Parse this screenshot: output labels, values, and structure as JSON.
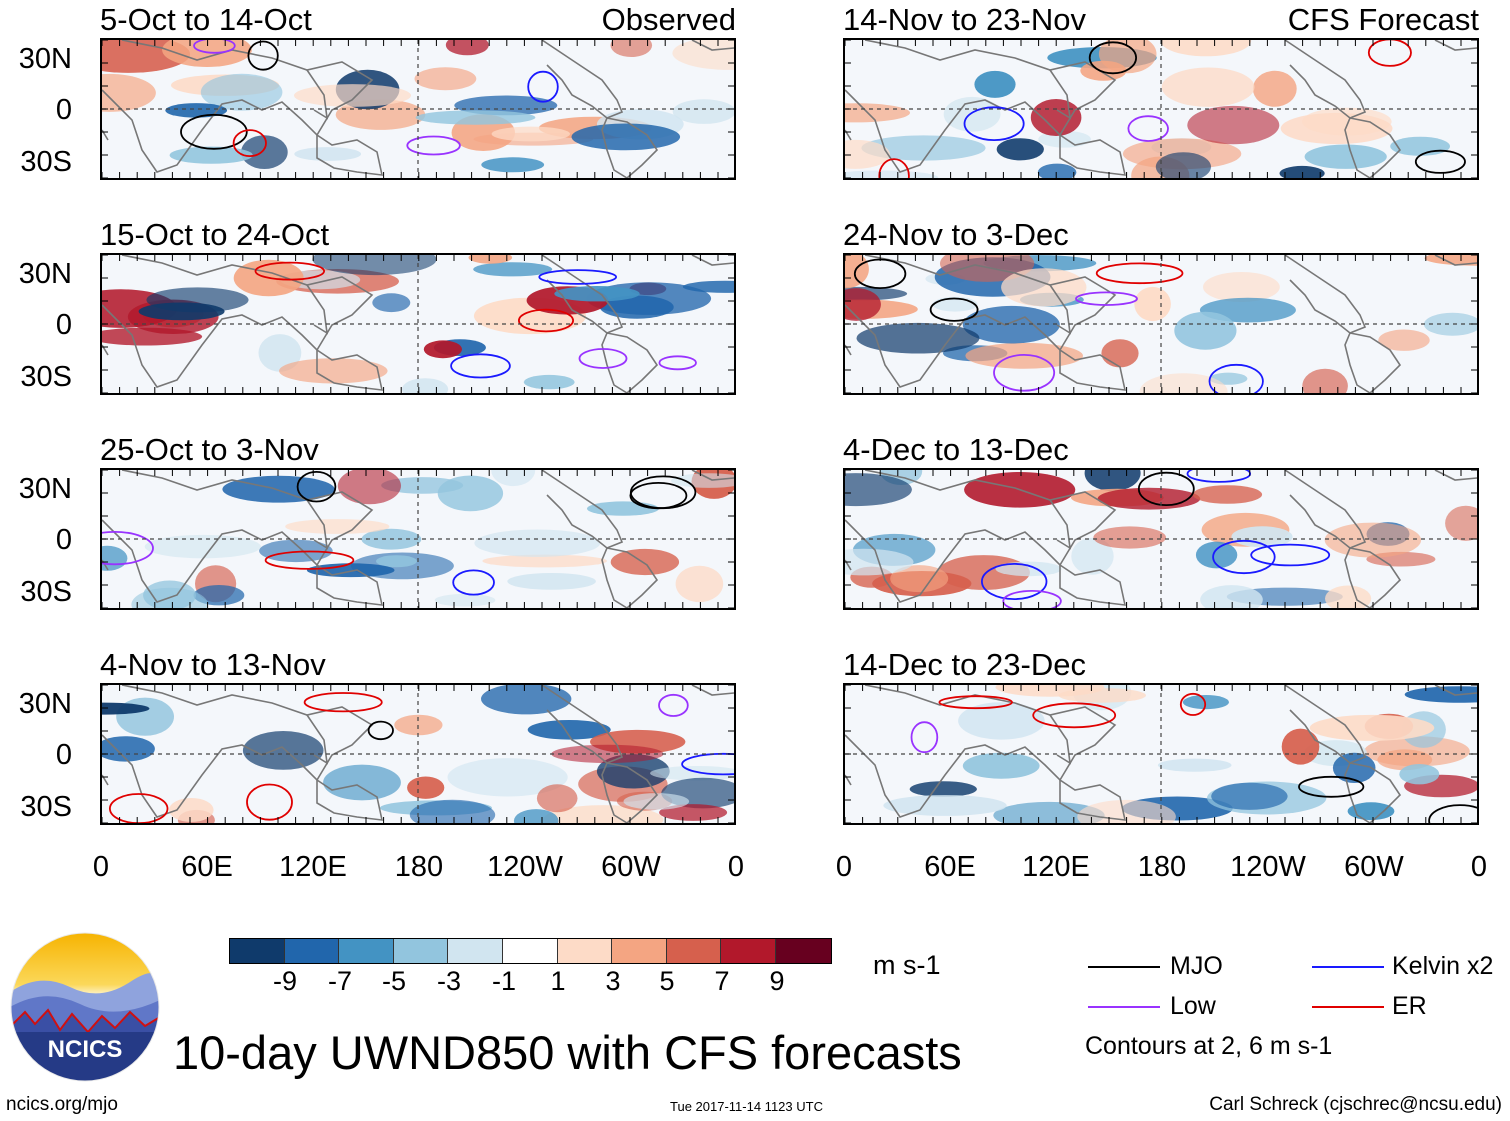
{
  "panels": [
    {
      "title": "5-Oct to 14-Oct",
      "label": "Observed"
    },
    {
      "title": "15-Oct to 24-Oct",
      "label": ""
    },
    {
      "title": "25-Oct to 3-Nov",
      "label": ""
    },
    {
      "title": "4-Nov to 13-Nov",
      "label": ""
    },
    {
      "title": "14-Nov to 23-Nov",
      "label": "CFS Forecast"
    },
    {
      "title": "24-Nov to 3-Dec",
      "label": ""
    },
    {
      "title": "4-Dec to 13-Dec",
      "label": ""
    },
    {
      "title": "14-Dec to 23-Dec",
      "label": ""
    }
  ],
  "lat_labels": [
    "30N",
    "0",
    "30S"
  ],
  "lon_labels": [
    "0",
    "60E",
    "120E",
    "180",
    "120W",
    "60W",
    "0"
  ],
  "colorbar": {
    "colors": [
      "#0f3a6b",
      "#2166ac",
      "#4393c3",
      "#92c5de",
      "#d1e5f0",
      "#ffffff",
      "#fddbc7",
      "#f4a582",
      "#d6604d",
      "#b2182b",
      "#67001f"
    ],
    "labels": [
      "-9",
      "-7",
      "-5",
      "-3",
      "-1",
      "1",
      "3",
      "5",
      "7",
      "9"
    ],
    "units": "m s-1"
  },
  "legend": {
    "items": [
      {
        "label": "MJO",
        "color": "#000000"
      },
      {
        "label": "Kelvin x2",
        "color": "#1a1aff"
      },
      {
        "label": "Low",
        "color": "#9933ff"
      },
      {
        "label": "ER",
        "color": "#e00000"
      }
    ],
    "note": "Contours at 2, 6 m s-1"
  },
  "logo_text": "NCICS",
  "main_title": "10-day UWND850 with CFS forecasts",
  "footer": {
    "left": "ncics.org/mjo",
    "center": "Tue 2017-11-14 1123 UTC",
    "right": "Carl Schreck (cjschrec@ncsu.edu)"
  }
}
